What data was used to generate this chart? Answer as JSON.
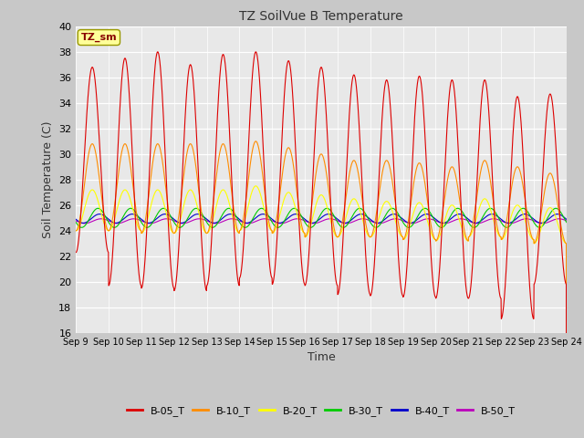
{
  "title": "TZ SoilVue B Temperature",
  "xlabel": "Time",
  "ylabel": "Soil Temperature (C)",
  "ylim": [
    16,
    40
  ],
  "annotation_text": "TZ_sm",
  "annotation_color": "#880000",
  "annotation_bg": "#ffff99",
  "background_color": "#c8c8c8",
  "plot_bg": "#e8e8e8",
  "xtick_labels": [
    "Sep 9",
    "Sep 10",
    "Sep 11",
    "Sep 12",
    "Sep 13",
    "Sep 14",
    "Sep 15",
    "Sep 16",
    "Sep 17",
    "Sep 18",
    "Sep 19",
    "Sep 20",
    "Sep 21",
    "Sep 22",
    "Sep 23",
    "Sep 24"
  ],
  "legend_entries": [
    "B-05_T",
    "B-10_T",
    "B-20_T",
    "B-30_T",
    "B-40_T",
    "B-50_T"
  ],
  "legend_colors": [
    "#dd0000",
    "#ff8c00",
    "#ffff00",
    "#00cc00",
    "#0000cc",
    "#bb00bb"
  ],
  "B05_peaks": [
    36.8,
    37.5,
    38.0,
    37.0,
    37.8,
    38.0,
    37.3,
    36.8,
    36.2,
    35.8,
    36.1,
    35.8,
    35.8,
    34.5,
    34.7
  ],
  "B05_troughs": [
    22.3,
    19.7,
    19.5,
    19.3,
    19.7,
    20.3,
    19.8,
    19.7,
    19.0,
    18.9,
    18.8,
    18.7,
    18.7,
    17.1,
    19.8
  ],
  "B10_peaks": [
    30.8,
    30.8,
    30.8,
    30.8,
    30.8,
    31.0,
    30.5,
    30.0,
    29.5,
    29.5,
    29.3,
    29.0,
    29.5,
    29.0,
    28.5
  ],
  "B10_troughs": [
    24.0,
    24.0,
    23.8,
    23.8,
    23.8,
    24.0,
    23.8,
    23.5,
    23.5,
    23.5,
    23.3,
    23.2,
    23.5,
    23.3,
    23.0
  ],
  "B20_peaks": [
    27.2,
    27.2,
    27.2,
    27.2,
    27.2,
    27.5,
    27.0,
    26.8,
    26.5,
    26.3,
    26.2,
    26.0,
    26.5,
    26.0,
    25.8
  ],
  "B20_troughs": [
    24.0,
    24.0,
    23.8,
    23.8,
    23.8,
    24.0,
    23.8,
    23.5,
    23.5,
    23.5,
    23.3,
    23.2,
    23.5,
    23.3,
    23.0
  ],
  "B30_amplitude": 0.75,
  "B30_mean": 25.0,
  "B30_phase": 1.1,
  "B40_amplitude": 0.35,
  "B40_mean": 24.95,
  "B40_phase": 1.4,
  "B50_amplitude": 0.18,
  "B50_mean": 24.75,
  "B50_phase": 1.7
}
